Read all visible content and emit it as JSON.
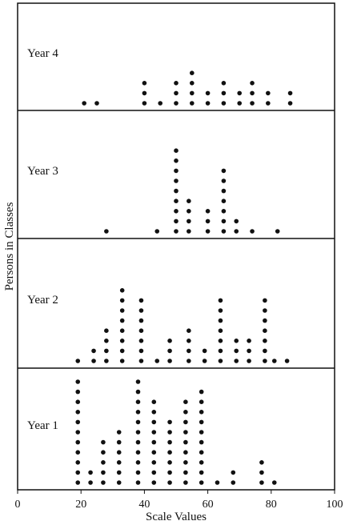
{
  "chart_data": {
    "type": "dot",
    "xlabel": "Scale Values",
    "ylabel": "Persons in Classes",
    "xlim": [
      0,
      100
    ],
    "xticks": [
      0,
      20,
      40,
      60,
      80,
      100
    ],
    "color": "#111111",
    "panels": [
      {
        "label": "Year 4",
        "x": [
          21,
          25,
          40,
          45,
          50,
          55,
          60,
          65,
          70,
          74,
          79,
          86
        ],
        "counts": [
          1,
          1,
          3,
          1,
          3,
          4,
          2,
          3,
          2,
          3,
          2,
          2
        ]
      },
      {
        "label": "Year 3",
        "x": [
          28,
          44,
          50,
          54,
          60,
          65,
          69,
          74,
          82
        ],
        "counts": [
          1,
          1,
          9,
          4,
          3,
          7,
          2,
          1,
          1
        ]
      },
      {
        "label": "Year 2",
        "x": [
          19,
          24,
          28,
          33,
          39,
          44,
          48,
          54,
          59,
          64,
          69,
          73,
          78,
          81,
          85
        ],
        "counts": [
          1,
          2,
          4,
          8,
          7,
          1,
          3,
          4,
          2,
          7,
          3,
          3,
          7,
          1,
          1
        ]
      },
      {
        "label": "Year 1",
        "x": [
          19,
          23,
          27,
          32,
          38,
          43,
          48,
          53,
          58,
          63,
          68,
          77,
          81
        ],
        "counts": [
          11,
          2,
          5,
          6,
          11,
          9,
          7,
          9,
          10,
          1,
          2,
          3,
          1
        ]
      }
    ]
  }
}
